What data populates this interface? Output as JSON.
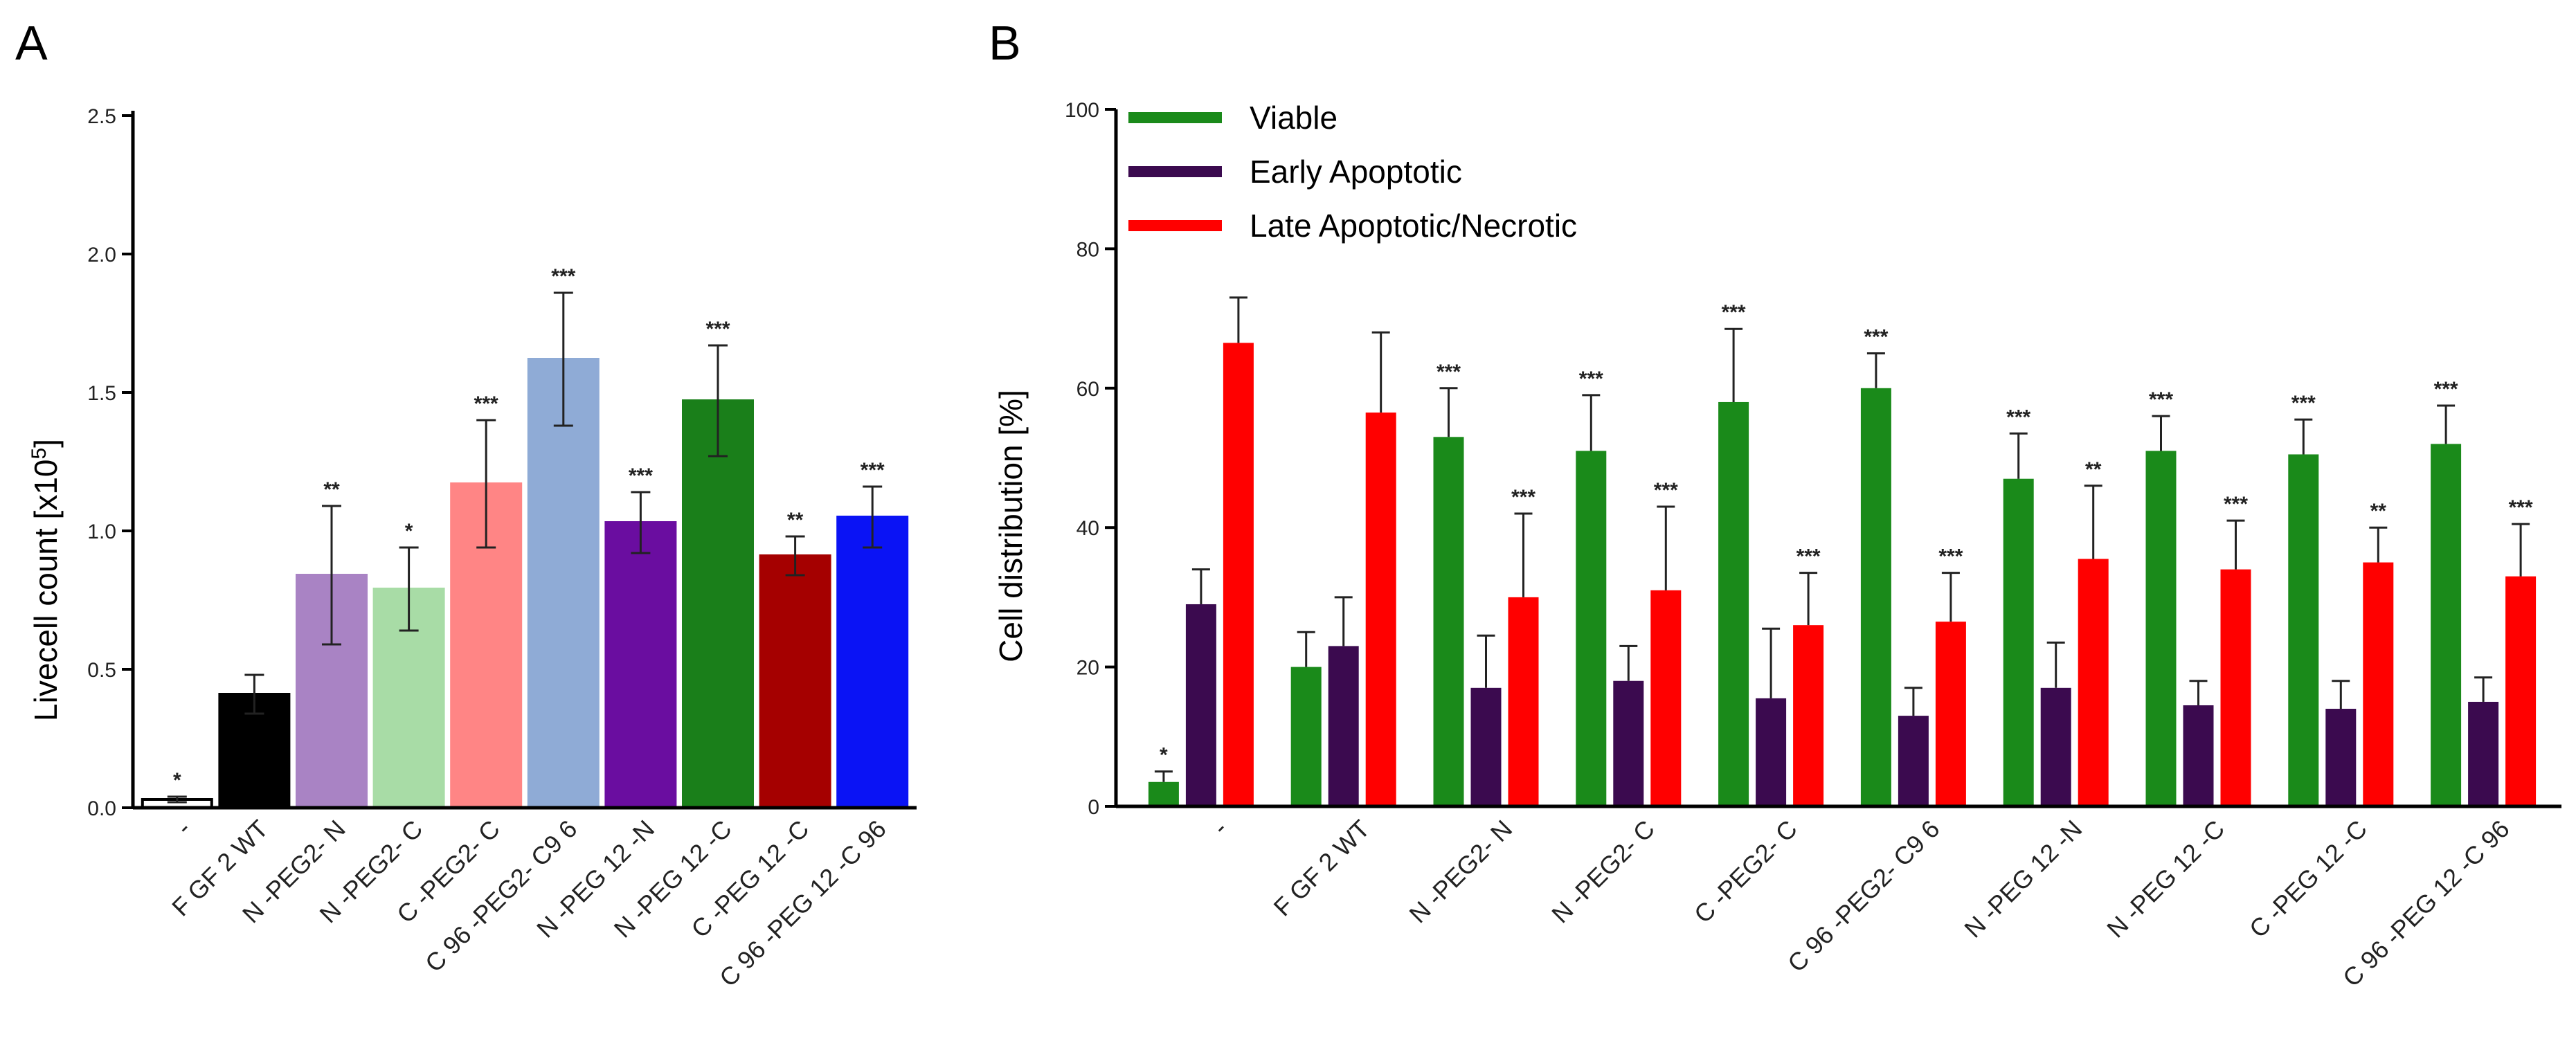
{
  "chart_data": [
    {
      "panel": "A",
      "type": "bar",
      "ylabel": "Livecell count [x10",
      "ylabel_exponent": "5",
      "ylabel_close": "]",
      "ylim": [
        0,
        2.5
      ],
      "yticks": [
        "0.0",
        "0.5",
        "1.0",
        "1.5",
        "2.0",
        "2.5"
      ],
      "categories": [
        "-",
        "F GF 2 WT",
        "N -PEG2- N",
        "N -PEG2- C",
        "C -PEG2- C",
        "C 96 -PEG2- C9 6",
        "N -PEG 12 -N",
        "N -PEG 12 -C",
        "C -PEG 12 -C",
        "C 96 -PEG 12 -C 96"
      ],
      "values": [
        0.03,
        0.41,
        0.84,
        0.79,
        1.17,
        1.62,
        1.03,
        1.47,
        0.91,
        1.05
      ],
      "errors": [
        0.01,
        0.07,
        0.25,
        0.15,
        0.23,
        0.24,
        0.11,
        0.2,
        0.07,
        0.11
      ],
      "colors": [
        "#ffffff",
        "#000000",
        "#a983c4",
        "#a8dca6",
        "#ff8585",
        "#8fabd6",
        "#6a0da0",
        "#1a7f1a",
        "#a50000",
        "#0a13f5"
      ],
      "significance": [
        "*",
        "",
        "**",
        "*",
        "***",
        "***",
        "***",
        "***",
        "**",
        "***"
      ]
    },
    {
      "panel": "B",
      "type": "bar",
      "ylabel": "Cell distribution [%]",
      "ylim": [
        0,
        100
      ],
      "yticks": [
        "0",
        "20",
        "40",
        "60",
        "80",
        "100"
      ],
      "legend_position": "top-left",
      "categories": [
        "-",
        "F GF 2 WT",
        "N -PEG2- N",
        "N -PEG2- C",
        "C -PEG2- C",
        "C 96 -PEG2- C9 6",
        "N -PEG 12 -N",
        "N -PEG 12 -C",
        "C -PEG 12 -C",
        "C 96 -PEG 12 -C 96"
      ],
      "series": [
        {
          "name": "Viable",
          "color": "#1a8a1a",
          "values": [
            3.5,
            20,
            53,
            51,
            58,
            60,
            47,
            51,
            50.5,
            52
          ],
          "errors": [
            1.5,
            5,
            7,
            8,
            10.5,
            5,
            6.5,
            5,
            5,
            5.5
          ],
          "significance": [
            "*",
            "",
            "***",
            "***",
            "***",
            "***",
            "***",
            "***",
            "***",
            "***"
          ]
        },
        {
          "name": "Early Apoptotic",
          "color": "#3b0a4f",
          "values": [
            29,
            23,
            17,
            18,
            15.5,
            13,
            17,
            14.5,
            14,
            15
          ],
          "errors": [
            5,
            7,
            7.5,
            5,
            10,
            4,
            6.5,
            3.5,
            4,
            3.5
          ],
          "significance": [
            "",
            "",
            "",
            "",
            "",
            "",
            "",
            "",
            "",
            ""
          ]
        },
        {
          "name": "Late Apoptotic/Necrotic",
          "color": "#ff0000",
          "values": [
            66.5,
            56.5,
            30,
            31,
            26,
            26.5,
            35.5,
            34,
            35,
            33
          ],
          "errors": [
            6.5,
            11.5,
            12,
            12,
            7.5,
            7,
            10.5,
            7,
            5,
            7.5
          ],
          "significance": [
            "",
            "",
            "***",
            "***",
            "***",
            "***",
            "**",
            "***",
            "**",
            "***"
          ]
        }
      ]
    }
  ],
  "panel_labels": {
    "a": "A",
    "b": "B"
  }
}
